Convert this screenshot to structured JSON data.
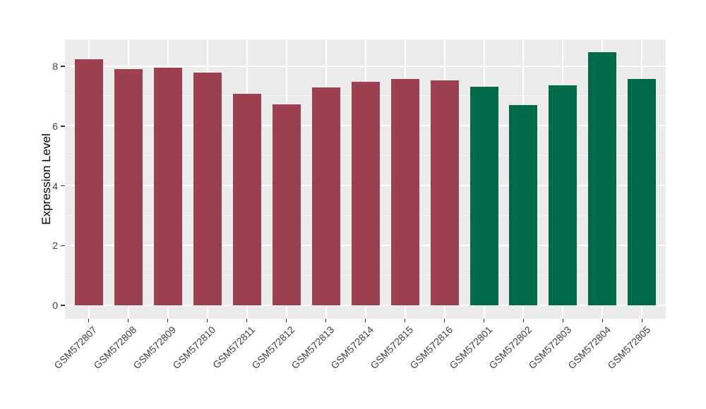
{
  "style": {
    "page_background": "#FFFFFF",
    "panel_background": "#EBEBEB",
    "gridline_major_color": "#FFFFFF",
    "gridline_minor_color": "#F7F7F7",
    "tick_mark_color": "#333333",
    "tick_label_color": "#404040",
    "axis_title_color": "#000000",
    "bar_color_left_group": "#9B4150",
    "bar_color_right_group": "#016A4B"
  },
  "chart_data": {
    "type": "bar",
    "title": "",
    "xlabel": "",
    "ylabel": "Expression Level",
    "categories": [
      "GSM572807",
      "GSM572808",
      "GSM572809",
      "GSM572810",
      "GSM572811",
      "GSM572812",
      "GSM572813",
      "GSM572814",
      "GSM572815",
      "GSM572816",
      "GSM572801",
      "GSM572802",
      "GSM572803",
      "GSM572804",
      "GSM572805"
    ],
    "values": [
      8.23,
      7.9,
      7.96,
      7.78,
      7.09,
      6.73,
      7.29,
      7.48,
      7.58,
      7.53,
      7.31,
      6.7,
      7.37,
      8.47,
      7.57
    ],
    "bar_colors": [
      "#9B4150",
      "#9B4150",
      "#9B4150",
      "#9B4150",
      "#9B4150",
      "#9B4150",
      "#9B4150",
      "#9B4150",
      "#9B4150",
      "#9B4150",
      "#016A4B",
      "#016A4B",
      "#016A4B",
      "#016A4B",
      "#016A4B"
    ],
    "yticks": [
      0,
      2,
      4,
      6,
      8
    ],
    "yticks_minor": [
      1,
      3,
      5,
      7
    ],
    "ylim": [
      0,
      8.9
    ],
    "grid": true,
    "legend": false
  }
}
